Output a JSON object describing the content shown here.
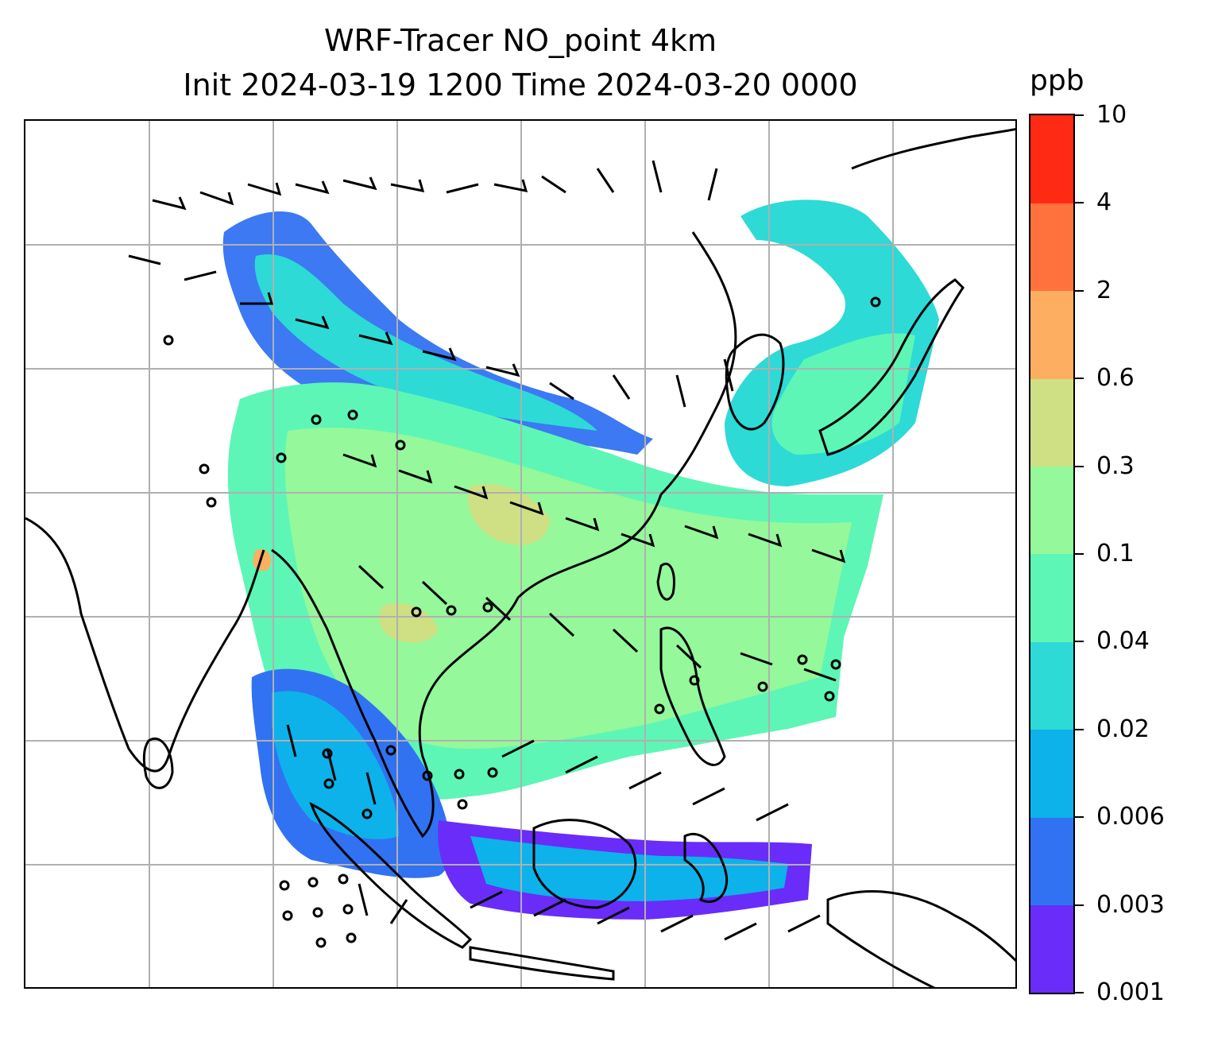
{
  "title": {
    "line1": "WRF-Tracer NO_point 4km",
    "line2": "Init 2024-03-19 1200 Time 2024-03-20 0000"
  },
  "colorbar": {
    "unit": "ppb",
    "levels": [
      "0.001",
      "0.003",
      "0.006",
      "0.02",
      "0.04",
      "0.1",
      "0.3",
      "0.6",
      "2",
      "4",
      "10"
    ],
    "colors": [
      "#6a2cf8",
      "#3172f2",
      "#0db2ea",
      "#2ddad6",
      "#5df6b6",
      "#95f89a",
      "#cfdf84",
      "#feae60",
      "#ff723e",
      "#ff2a14"
    ]
  },
  "map": {
    "field": "NO_point tracer concentration",
    "overlays": [
      "wind-barbs",
      "coastlines",
      "country-borders",
      "lat-lon-gridlines"
    ]
  }
}
